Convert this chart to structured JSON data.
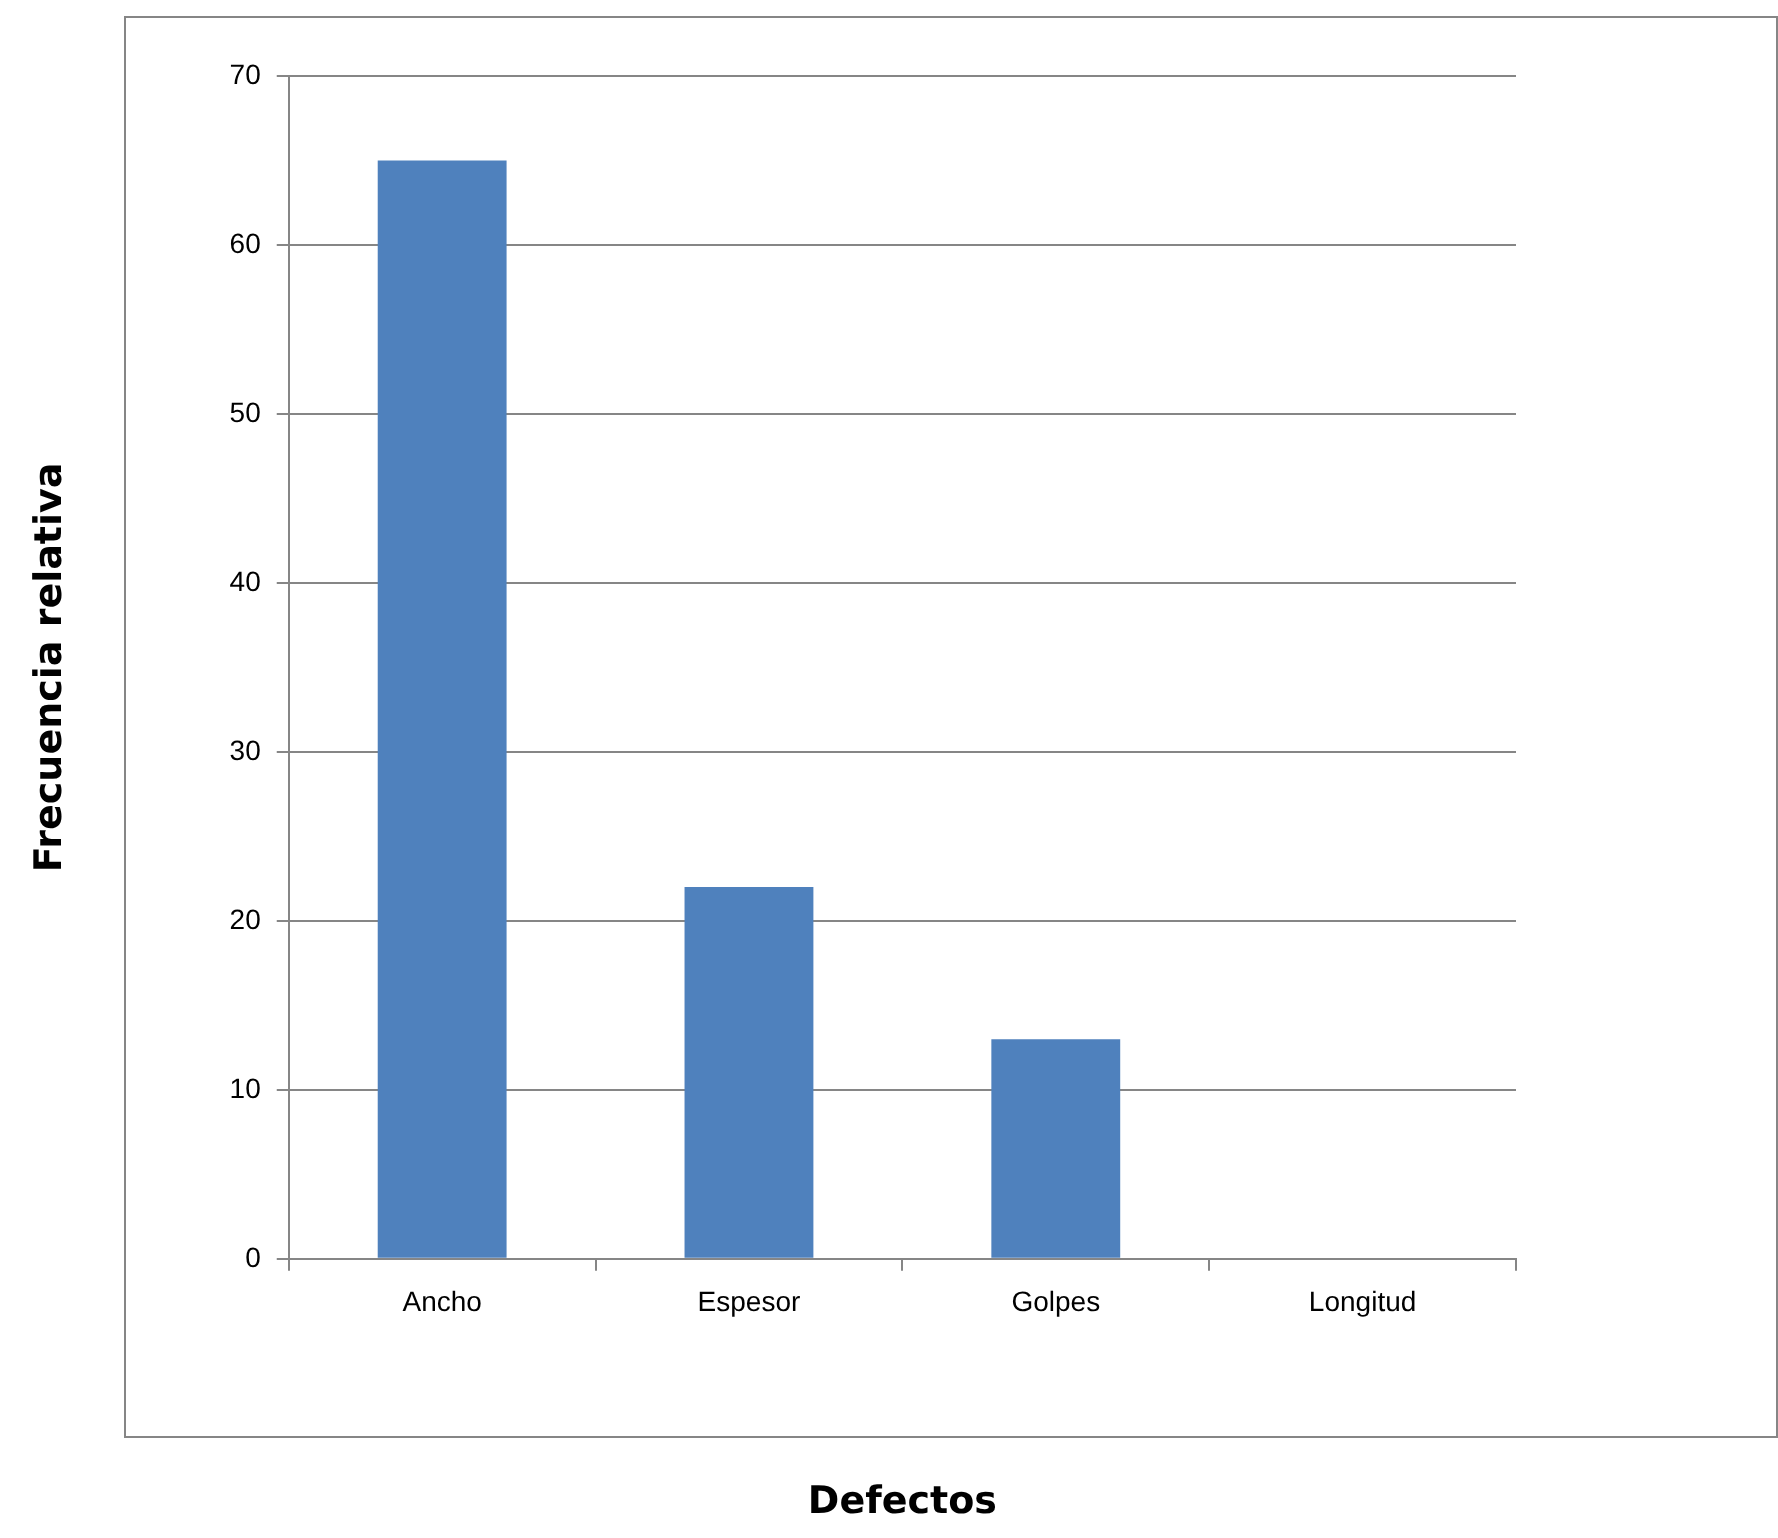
{
  "chart_data": {
    "type": "bar",
    "xlabel": "Defectos",
    "ylabel": "Frecuencia relativa",
    "categories": [
      "Ancho",
      "Espesor",
      "Golpes",
      "Longitud"
    ],
    "values": [
      65,
      22,
      13,
      0
    ],
    "color": "#4f81bd",
    "ylim": [
      0,
      70
    ],
    "yticks": [
      0,
      10,
      20,
      30,
      40,
      50,
      60,
      70
    ],
    "grid": "y"
  }
}
